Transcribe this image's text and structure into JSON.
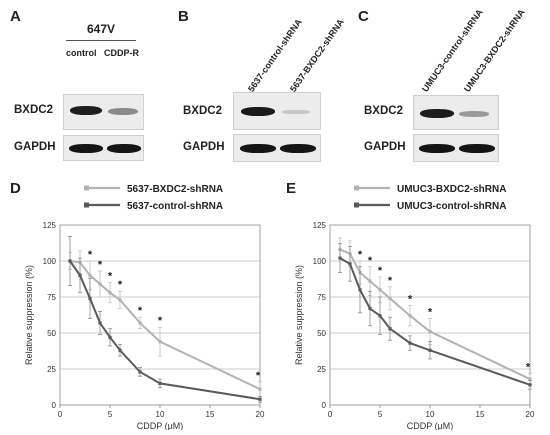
{
  "panels": {
    "A": {
      "letter": "A",
      "cell_line": "647V",
      "lanes": [
        "control",
        "CDDP-R"
      ],
      "proteins": [
        "BXDC2",
        "GAPDH"
      ],
      "bxdc2_level": [
        1.0,
        0.5
      ],
      "gapdh_level": [
        1.0,
        1.0
      ]
    },
    "B": {
      "letter": "B",
      "lanes": [
        "5637-control-shRNA",
        "5637-BXDC2-shRNA"
      ],
      "proteins": [
        "BXDC2",
        "GAPDH"
      ],
      "bxdc2_level": [
        1.0,
        0.2
      ],
      "gapdh_level": [
        1.0,
        1.0
      ]
    },
    "C": {
      "letter": "C",
      "lanes": [
        "UMUC3-control-shRNA",
        "UMUC3-BXDC2-shRNA"
      ],
      "proteins": [
        "BXDC2",
        "GAPDH"
      ],
      "bxdc2_level": [
        1.0,
        0.45
      ],
      "gapdh_level": [
        1.0,
        1.0
      ]
    },
    "D": {
      "letter": "D"
    },
    "E": {
      "letter": "E"
    }
  },
  "chart_data": [
    {
      "type": "line",
      "panel": "D",
      "xlabel": "CDDP (μM)",
      "ylabel": "Relative suppression (%)",
      "xlim": [
        0,
        20
      ],
      "ylim": [
        0,
        125
      ],
      "xticks": [
        0,
        5,
        10,
        15,
        20
      ],
      "yticks": [
        0,
        25,
        50,
        75,
        100,
        125
      ],
      "grid": "horizontal",
      "legend": "top",
      "series": [
        {
          "name": "5637-BXDC2-shRNA",
          "color": "#b3b3b3",
          "x": [
            1,
            2,
            3,
            4,
            5,
            6,
            8,
            10,
            20
          ],
          "y": [
            100,
            99,
            90,
            84,
            78,
            73,
            57,
            44,
            11
          ],
          "err": [
            6,
            8,
            10,
            9,
            7,
            6,
            4,
            10,
            5
          ]
        },
        {
          "name": "5637-control-shRNA",
          "color": "#5a5a5a",
          "x": [
            1,
            2,
            3,
            4,
            5,
            6,
            8,
            10,
            20
          ],
          "y": [
            100,
            90,
            74,
            57,
            47,
            38,
            23,
            15,
            4
          ],
          "err": [
            17,
            12,
            14,
            8,
            6,
            4,
            3,
            3,
            2
          ]
        }
      ],
      "significance": [
        {
          "x": 3,
          "label": "*"
        },
        {
          "x": 4,
          "label": "*"
        },
        {
          "x": 5,
          "label": "*"
        },
        {
          "x": 6,
          "label": "*"
        },
        {
          "x": 8,
          "label": "*"
        },
        {
          "x": 10,
          "label": "*"
        },
        {
          "x": 20,
          "label": "*"
        }
      ]
    },
    {
      "type": "line",
      "panel": "E",
      "xlabel": "CDDP (μM)",
      "ylabel": "Relative suppression (%)",
      "xlim": [
        0,
        20
      ],
      "ylim": [
        0,
        125
      ],
      "xticks": [
        0,
        5,
        10,
        15,
        20
      ],
      "yticks": [
        0,
        25,
        50,
        75,
        100,
        125
      ],
      "grid": "horizontal",
      "legend": "top",
      "series": [
        {
          "name": "UMUC3-BXDC2-shRNA",
          "color": "#b3b3b3",
          "x": [
            1,
            2,
            3,
            4,
            5,
            6,
            8,
            10,
            20
          ],
          "y": [
            108,
            105,
            92,
            86,
            80,
            74,
            62,
            51,
            18
          ],
          "err": [
            8,
            9,
            8,
            10,
            9,
            8,
            7,
            9,
            4
          ]
        },
        {
          "name": "UMUC3-control-shRNA",
          "color": "#5a5a5a",
          "x": [
            1,
            2,
            3,
            4,
            5,
            6,
            8,
            10,
            20
          ],
          "y": [
            102,
            98,
            80,
            67,
            62,
            53,
            43,
            38,
            14
          ],
          "err": [
            10,
            12,
            16,
            12,
            13,
            8,
            5,
            6,
            3
          ]
        }
      ],
      "significance": [
        {
          "x": 3,
          "label": "*"
        },
        {
          "x": 4,
          "label": "*"
        },
        {
          "x": 5,
          "label": "*"
        },
        {
          "x": 6,
          "label": "*"
        },
        {
          "x": 8,
          "label": "*"
        },
        {
          "x": 10,
          "label": "*"
        },
        {
          "x": 20,
          "label": "*"
        }
      ]
    }
  ]
}
